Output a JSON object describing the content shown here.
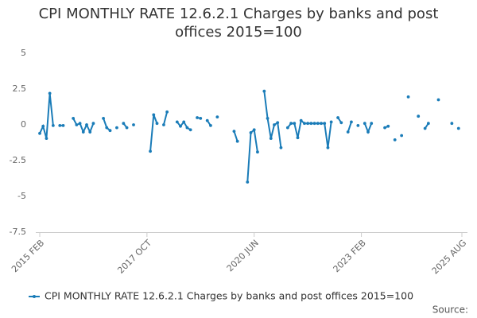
{
  "chart_data": {
    "type": "line",
    "title": "CPI MONTHLY RATE 12.6.2.1 Charges by banks and post offices 2015=100",
    "categories": [
      "2015 FEB",
      null,
      null,
      null,
      null,
      null,
      null,
      null,
      null,
      null,
      null,
      null,
      null,
      null,
      null,
      null,
      null,
      null,
      null,
      null,
      null,
      null,
      null,
      null,
      null,
      null,
      null,
      null,
      null,
      null,
      null,
      null,
      "2017 OCT",
      null,
      null,
      null,
      null,
      null,
      null,
      null,
      null,
      null,
      null,
      null,
      null,
      null,
      null,
      null,
      null,
      null,
      null,
      null,
      null,
      null,
      null,
      null,
      null,
      null,
      null,
      null,
      null,
      null,
      null,
      null,
      "2020 JUN",
      null,
      null,
      null,
      null,
      null,
      null,
      null,
      null,
      null,
      null,
      null,
      null,
      null,
      null,
      null,
      null,
      null,
      null,
      null,
      null,
      null,
      null,
      null,
      null,
      null,
      null,
      null,
      null,
      null,
      null,
      null,
      "2023 FEB",
      null,
      null,
      null,
      null,
      null,
      null,
      null,
      null,
      null,
      null,
      null,
      null,
      null,
      null,
      null,
      null,
      null,
      null,
      null,
      null,
      null,
      null,
      null,
      null,
      null,
      null,
      null,
      null,
      null,
      "2025 AUG"
    ],
    "series": [
      {
        "name": "CPI MONTHLY RATE 12.6.2.1 Charges by banks and post offices 2015=100",
        "color": "#1a7cb8",
        "values": [
          -0.6,
          -0.1,
          -0.95,
          2.2,
          -0.05,
          null,
          -0.05,
          -0.05,
          null,
          null,
          0.45,
          0,
          0.1,
          -0.5,
          0,
          -0.5,
          0.1,
          null,
          null,
          0.45,
          -0.2,
          -0.4,
          null,
          -0.2,
          null,
          0.1,
          -0.2,
          null,
          0,
          null,
          null,
          null,
          null,
          -1.85,
          0.7,
          0.1,
          null,
          0,
          0.9,
          null,
          null,
          0.2,
          -0.1,
          0.2,
          -0.2,
          -0.35,
          null,
          0.5,
          0.45,
          null,
          0.3,
          -0.05,
          null,
          0.55,
          null,
          null,
          null,
          null,
          -0.45,
          -1.15,
          null,
          null,
          -4.0,
          -0.55,
          -0.35,
          -1.9,
          null,
          2.35,
          0.45,
          -0.95,
          0,
          0.15,
          -1.6,
          null,
          -0.2,
          0.1,
          0.1,
          -0.9,
          0.3,
          0.1,
          0.1,
          0.1,
          0.1,
          0.1,
          0.1,
          0.1,
          -1.6,
          0.2,
          null,
          0.5,
          0.15,
          null,
          -0.5,
          0.2,
          null,
          -0.05,
          null,
          0.1,
          -0.5,
          0.1,
          null,
          null,
          null,
          -0.2,
          -0.1,
          null,
          -1.05,
          null,
          -0.75,
          null,
          1.95,
          null,
          null,
          0.6,
          null,
          -0.25,
          0.1,
          null,
          null,
          1.75,
          null,
          null,
          null,
          0.1,
          null,
          -0.25,
          null
        ]
      }
    ],
    "ylim": [
      -7.5,
      5
    ],
    "yticks": [
      5,
      2.5,
      0,
      -2.5,
      -5,
      -7.5
    ],
    "grid": false,
    "legend": "bottom",
    "source": "Source:"
  }
}
